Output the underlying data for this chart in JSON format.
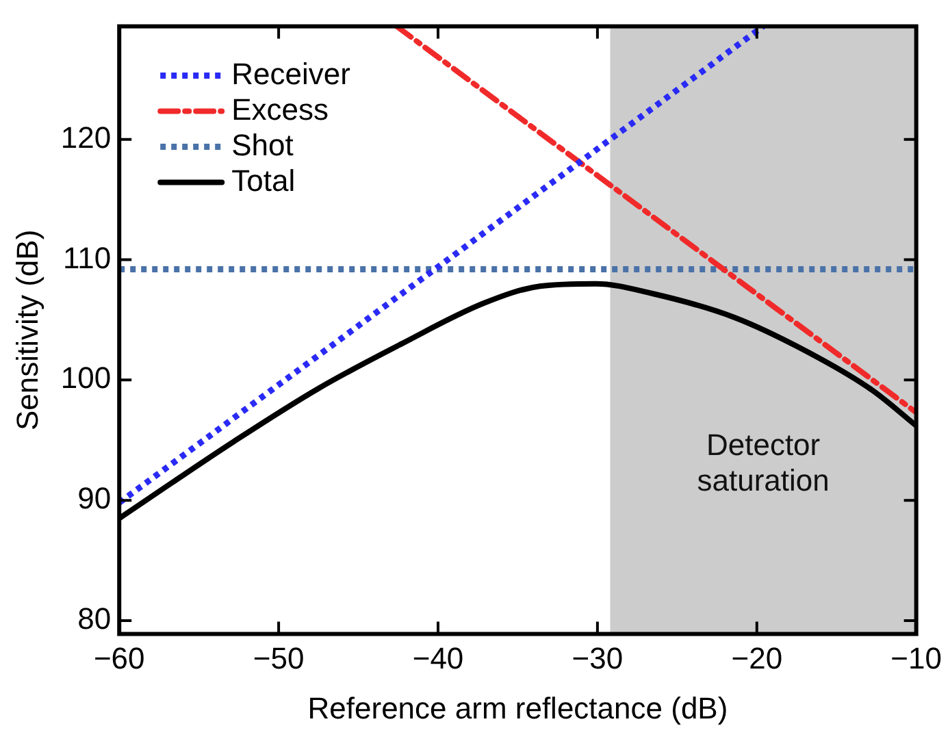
{
  "chart_data": {
    "type": "line",
    "xlabel": "Reference arm reflectance (dB)",
    "ylabel": "Sensitivity (dB)",
    "xlim": [
      -60,
      -10
    ],
    "ylim": [
      78.9,
      129.4
    ],
    "xticks": [
      {
        "value": -60,
        "label": "−60"
      },
      {
        "value": -50,
        "label": "−50"
      },
      {
        "value": -40,
        "label": "−40"
      },
      {
        "value": -30,
        "label": "−30"
      },
      {
        "value": -20,
        "label": "−20"
      },
      {
        "value": -10,
        "label": "−10"
      }
    ],
    "yticks": [
      80,
      90,
      100,
      110,
      120
    ],
    "grid": false,
    "legend": "top left",
    "marker": "none",
    "bands": [
      {
        "axis": "x",
        "from": -29.2,
        "to": -10,
        "label": "Detector saturation",
        "color": "#cccccc"
      }
    ],
    "series": [
      {
        "name": "Receiver",
        "color": "#2a2af5",
        "line_style": "dotted",
        "x": [
          -60,
          -19.6
        ],
        "values": [
          89.8,
          129.4
        ]
      },
      {
        "name": "Excess",
        "color": "#f02a2a",
        "line_style": "dashed",
        "x": [
          -42.6,
          -10
        ],
        "values": [
          129.4,
          97.3
        ]
      },
      {
        "name": "Shot",
        "color": "#4a72a8",
        "line_style": "dotted",
        "x": [
          -60,
          -10
        ],
        "values": [
          109.2,
          109.2
        ]
      },
      {
        "name": "Total",
        "color": "#000000",
        "line_style": "solid",
        "x": [
          -60,
          -52.8,
          -47.5,
          -42.3,
          -37.1,
          -33.6,
          -30.1,
          -26.6,
          -21.4,
          -16.2,
          -12.7,
          -10
        ],
        "values": [
          88.5,
          94.9,
          99.3,
          103.0,
          106.4,
          107.8,
          108.0,
          107.2,
          105.2,
          101.9,
          99.1,
          96.2
        ]
      }
    ]
  }
}
